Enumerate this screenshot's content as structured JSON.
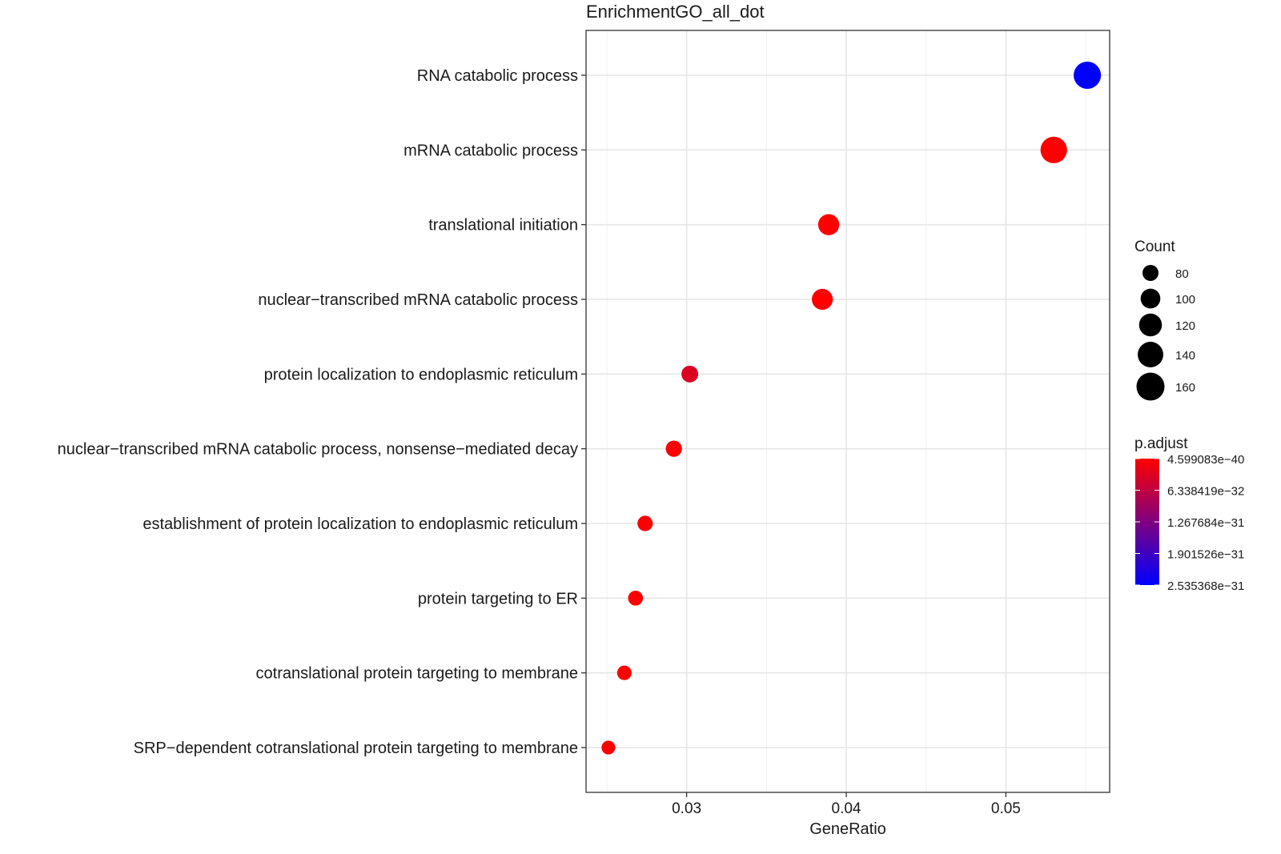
{
  "chart_data": {
    "type": "scatter",
    "title": "EnrichmentGO_all_dot",
    "xlabel": "GeneRatio",
    "ylabel": "",
    "xlim": [
      0.0237,
      0.0565
    ],
    "x_ticks": [
      0.03,
      0.04,
      0.05
    ],
    "x_tick_labels": [
      "0.03",
      "0.04",
      "0.05"
    ],
    "grid": true,
    "categories": [
      "RNA catabolic process",
      "mRNA catabolic process",
      "translational initiation",
      "nuclear−transcribed mRNA catabolic process",
      "protein localization to endoplasmic reticulum",
      "nuclear−transcribed mRNA catabolic process, nonsense−mediated decay",
      "establishment of protein localization to endoplasmic reticulum",
      "protein targeting to ER",
      "cotranslational protein targeting to membrane",
      "SRP−dependent cotranslational protein targeting to membrane"
    ],
    "gene_ratio": [
      0.0551,
      0.053,
      0.0389,
      0.0385,
      0.0302,
      0.0292,
      0.0274,
      0.0268,
      0.0261,
      0.0251
    ],
    "count": [
      154,
      148,
      109,
      108,
      84,
      81,
      77,
      75,
      73,
      70
    ],
    "p_adjust": [
      2.535368e-31,
      1e-38,
      1e-36,
      1e-36,
      3.5e-32,
      5e-34,
      1e-36,
      1e-37,
      1e-37,
      1e-38
    ],
    "size_legend": {
      "title": "Count",
      "values": [
        80,
        100,
        120,
        140,
        160
      ],
      "labels": [
        "80",
        "100",
        "120",
        "140",
        "160"
      ]
    },
    "color_legend": {
      "title": "p.adjust",
      "range": [
        4.599083e-40,
        2.535368e-31
      ],
      "low_color": "#ff0000",
      "high_color": "#0000ff",
      "ticks": [
        4.599083e-40,
        6.338419e-32,
        1.267684e-31,
        1.901526e-31,
        2.535368e-31
      ],
      "labels": [
        "4.599083e−40",
        "6.338419e−32",
        "1.267684e−31",
        "1.901526e−31",
        "2.535368e−31"
      ]
    },
    "legend_position": "right"
  }
}
